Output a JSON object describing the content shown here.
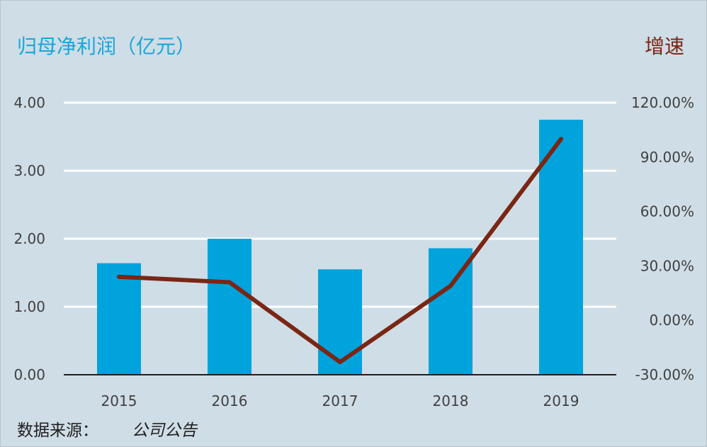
{
  "chart_data": {
    "type": "bar",
    "title_left": "归母净利润（亿元）",
    "title_right": "增速",
    "categories": [
      "2015",
      "2016",
      "2017",
      "2018",
      "2019"
    ],
    "series": [
      {
        "type": "bar",
        "axis": "left",
        "values": [
          1.64,
          2.0,
          1.55,
          1.86,
          3.75
        ]
      },
      {
        "type": "line",
        "axis": "right",
        "values": [
          0.24,
          0.21,
          -0.23,
          0.19,
          1.0
        ]
      }
    ],
    "y_left": {
      "ticks": [
        "4.00",
        "3.00",
        "2.00",
        "1.00",
        "0.00"
      ],
      "range": [
        0,
        4
      ]
    },
    "y_right": {
      "ticks": [
        "120.00%",
        "90.00%",
        "60.00%",
        "30.00%",
        "0.00%",
        "-30.00%"
      ],
      "range": [
        -0.3,
        1.2
      ]
    },
    "grid": true,
    "colors": {
      "bar": "#00a3dc",
      "line": "#7a2615",
      "grid": "#ffffff",
      "axis": "#1f1f1f"
    },
    "source": {
      "label": "数据来源：",
      "value": "公司公告"
    }
  }
}
